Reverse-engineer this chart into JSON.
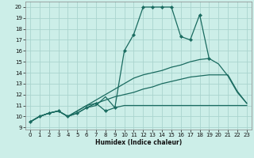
{
  "xlabel": "Humidex (Indice chaleur)",
  "bg_color": "#cceee8",
  "grid_color": "#aad4ce",
  "line_color": "#1a6b60",
  "xlim": [
    -0.5,
    23.5
  ],
  "ylim": [
    8.8,
    20.5
  ],
  "xticks": [
    0,
    1,
    2,
    3,
    4,
    5,
    6,
    7,
    8,
    9,
    10,
    11,
    12,
    13,
    14,
    15,
    16,
    17,
    18,
    19,
    20,
    21,
    22,
    23
  ],
  "yticks": [
    9,
    10,
    11,
    12,
    13,
    14,
    15,
    16,
    17,
    18,
    19,
    20
  ],
  "series": [
    {
      "x": [
        0,
        1,
        2,
        3,
        4,
        5,
        6,
        7,
        8,
        9,
        10,
        11,
        12,
        13,
        14,
        15,
        16,
        17,
        18,
        19
      ],
      "y": [
        9.5,
        10.0,
        10.3,
        10.5,
        10.0,
        10.3,
        10.8,
        11.2,
        10.5,
        10.8,
        16.0,
        17.5,
        20.0,
        20.0,
        20.0,
        20.0,
        17.3,
        17.0,
        19.3,
        15.3
      ],
      "marker": true
    },
    {
      "x": [
        0,
        1,
        2,
        3,
        4,
        5,
        6,
        7,
        8,
        9,
        10,
        11,
        12,
        13,
        14,
        15,
        16,
        17,
        18,
        19,
        20,
        21,
        22,
        23
      ],
      "y": [
        9.5,
        10.0,
        10.3,
        10.5,
        10.0,
        10.3,
        10.8,
        11.0,
        11.8,
        10.8,
        11.0,
        11.0,
        11.0,
        11.0,
        11.0,
        11.0,
        11.0,
        11.0,
        11.0,
        11.0,
        11.0,
        11.0,
        11.0,
        11.0
      ],
      "marker": false
    },
    {
      "x": [
        0,
        1,
        2,
        3,
        4,
        5,
        6,
        7,
        8,
        9,
        10,
        11,
        12,
        13,
        14,
        15,
        16,
        17,
        18,
        19,
        20,
        21,
        22,
        23
      ],
      "y": [
        9.5,
        10.0,
        10.3,
        10.5,
        10.0,
        10.5,
        11.0,
        11.2,
        11.5,
        11.8,
        12.0,
        12.2,
        12.5,
        12.7,
        13.0,
        13.2,
        13.4,
        13.6,
        13.7,
        13.8,
        13.8,
        13.8,
        12.3,
        11.2
      ],
      "marker": false
    },
    {
      "x": [
        0,
        1,
        2,
        3,
        4,
        5,
        6,
        7,
        8,
        9,
        10,
        11,
        12,
        13,
        14,
        15,
        16,
        17,
        18,
        19,
        20,
        21,
        22,
        23
      ],
      "y": [
        9.5,
        10.0,
        10.3,
        10.5,
        10.0,
        10.5,
        11.0,
        11.5,
        12.0,
        12.5,
        13.0,
        13.5,
        13.8,
        14.0,
        14.2,
        14.5,
        14.7,
        15.0,
        15.2,
        15.3,
        14.8,
        13.7,
        12.2,
        11.2
      ],
      "marker": false
    }
  ]
}
